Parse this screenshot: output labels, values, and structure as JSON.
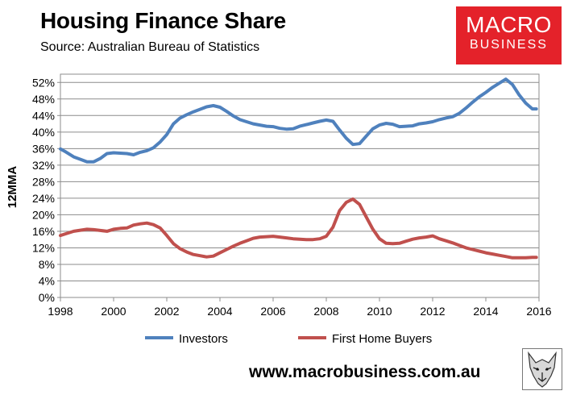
{
  "header": {
    "title": "Housing Finance Share",
    "subtitle": "Source: Australian Bureau of Statistics"
  },
  "logo": {
    "line1": "MACRO",
    "line2": "BUSINESS",
    "color": "#e4222a"
  },
  "footer": {
    "url": "www.macrobusiness.com.au"
  },
  "icons": {
    "mascot": "wolf-icon"
  },
  "chart_data": {
    "type": "line",
    "title": "",
    "xlabel": "",
    "ylabel": "12MMA",
    "xlim": [
      1998,
      2016
    ],
    "ylim": [
      0,
      54
    ],
    "grid": true,
    "legend_position": "bottom",
    "x_ticks": [
      "1998",
      "2000",
      "2002",
      "2004",
      "2006",
      "2008",
      "2010",
      "2012",
      "2014",
      "2016"
    ],
    "y_ticks": [
      "0%",
      "4%",
      "8%",
      "12%",
      "16%",
      "20%",
      "24%",
      "28%",
      "32%",
      "36%",
      "40%",
      "44%",
      "48%",
      "52%"
    ],
    "series": [
      {
        "name": "Investors",
        "color": "#4f81bd",
        "x": [
          1998.0,
          1998.2,
          1998.5,
          1998.8,
          1999.0,
          1999.25,
          1999.5,
          1999.75,
          2000.0,
          2000.25,
          2000.5,
          2000.75,
          2001.0,
          2001.25,
          2001.5,
          2001.75,
          2002.0,
          2002.25,
          2002.5,
          2002.75,
          2003.0,
          2003.25,
          2003.5,
          2003.75,
          2004.0,
          2004.25,
          2004.5,
          2004.75,
          2005.0,
          2005.25,
          2005.5,
          2005.75,
          2006.0,
          2006.25,
          2006.5,
          2006.75,
          2007.0,
          2007.25,
          2007.5,
          2007.75,
          2008.0,
          2008.25,
          2008.5,
          2008.75,
          2009.0,
          2009.25,
          2009.5,
          2009.75,
          2010.0,
          2010.25,
          2010.5,
          2010.75,
          2011.0,
          2011.25,
          2011.5,
          2011.75,
          2012.0,
          2012.25,
          2012.5,
          2012.75,
          2013.0,
          2013.25,
          2013.5,
          2013.75,
          2014.0,
          2014.25,
          2014.5,
          2014.75,
          2015.0,
          2015.25,
          2015.5,
          2015.75,
          2015.9
        ],
        "values": [
          35.9,
          35.2,
          34.0,
          33.3,
          32.8,
          32.8,
          33.6,
          34.8,
          35.0,
          34.9,
          34.8,
          34.5,
          35.1,
          35.5,
          36.2,
          37.6,
          39.4,
          42.0,
          43.4,
          44.2,
          44.9,
          45.5,
          46.1,
          46.4,
          46.0,
          45.0,
          43.9,
          43.0,
          42.5,
          42.0,
          41.7,
          41.4,
          41.3,
          40.9,
          40.7,
          40.8,
          41.4,
          41.8,
          42.2,
          42.6,
          42.9,
          42.6,
          40.5,
          38.5,
          37.0,
          37.2,
          39.0,
          40.8,
          41.7,
          42.1,
          41.9,
          41.3,
          41.4,
          41.5,
          42.0,
          42.2,
          42.5,
          43.0,
          43.4,
          43.7,
          44.5,
          45.8,
          47.2,
          48.5,
          49.6,
          50.8,
          51.8,
          52.8,
          51.5,
          49.0,
          47.0,
          45.6,
          45.6
        ]
      },
      {
        "name": "First Home Buyers",
        "color": "#c0504d",
        "x": [
          1998.0,
          1998.2,
          1998.5,
          1998.8,
          1999.0,
          1999.25,
          1999.5,
          1999.75,
          2000.0,
          2000.25,
          2000.5,
          2000.75,
          2001.0,
          2001.25,
          2001.5,
          2001.75,
          2002.0,
          2002.25,
          2002.5,
          2002.75,
          2003.0,
          2003.25,
          2003.5,
          2003.75,
          2004.0,
          2004.25,
          2004.5,
          2004.75,
          2005.0,
          2005.25,
          2005.5,
          2005.75,
          2006.0,
          2006.25,
          2006.5,
          2006.75,
          2007.0,
          2007.25,
          2007.5,
          2007.75,
          2008.0,
          2008.25,
          2008.5,
          2008.75,
          2009.0,
          2009.25,
          2009.5,
          2009.75,
          2010.0,
          2010.25,
          2010.5,
          2010.75,
          2011.0,
          2011.25,
          2011.5,
          2011.75,
          2012.0,
          2012.25,
          2012.5,
          2012.75,
          2013.0,
          2013.25,
          2013.5,
          2013.75,
          2014.0,
          2014.25,
          2014.5,
          2014.75,
          2015.0,
          2015.25,
          2015.5,
          2015.75,
          2015.9
        ],
        "values": [
          15.0,
          15.4,
          16.0,
          16.3,
          16.5,
          16.4,
          16.2,
          16.0,
          16.5,
          16.7,
          16.8,
          17.5,
          17.8,
          18.0,
          17.6,
          16.8,
          15.0,
          13.0,
          11.8,
          11.0,
          10.4,
          10.1,
          9.8,
          10.0,
          10.8,
          11.6,
          12.4,
          13.1,
          13.7,
          14.3,
          14.6,
          14.7,
          14.8,
          14.6,
          14.4,
          14.2,
          14.1,
          14.0,
          14.0,
          14.2,
          14.8,
          17.0,
          21.0,
          23.0,
          23.8,
          22.5,
          19.5,
          16.5,
          14.2,
          13.1,
          13.0,
          13.1,
          13.6,
          14.1,
          14.4,
          14.6,
          14.9,
          14.2,
          13.7,
          13.2,
          12.6,
          12.0,
          11.6,
          11.2,
          10.8,
          10.5,
          10.2,
          9.9,
          9.6,
          9.6,
          9.6,
          9.7,
          9.7
        ]
      }
    ]
  }
}
